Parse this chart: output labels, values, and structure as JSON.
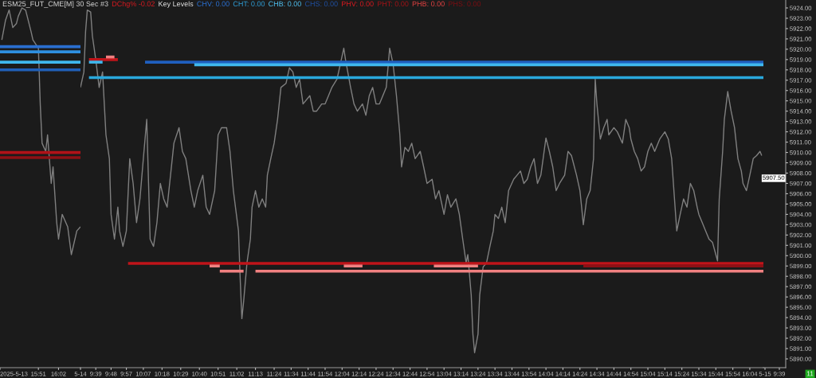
{
  "chart_data": [
    {
      "type": "line",
      "title": "ESM25_FUT_CME[M] 30 Sec #3",
      "annotations": [
        "DChg% -0.02",
        "Key Levels",
        "CHV: 0.00",
        "CHT: 0.00",
        "CHB: 0.00",
        "CHS: 0.00",
        "PHV: 0.00",
        "PHT: 0.00",
        "PHB: 0.00",
        "PHS: 0.00",
        "11"
      ],
      "xlim": [
        "2025-05-13T15:30",
        "2025-05-13T16:14"
      ],
      "xticks": [
        {
          "value": "2025-05-13T15:30",
          "label": "2025-5-13"
        },
        {
          "value": "2025-05-13T15:51",
          "label": "15:51"
        },
        {
          "value": "2025-05-13T16:02",
          "label": "16:02"
        }
      ],
      "ylim": [
        5889.15,
        5924.77
      ],
      "tick_labels": "x",
      "series": [
        {
          "color": "#808080",
          "x": [
            "2025-05-13T15:31",
            "2025-05-13T15:33",
            "2025-05-13T15:35",
            "2025-05-13T15:37",
            "2025-05-13T15:39",
            "2025-05-13T15:40",
            "2025-05-13T15:42",
            "2025-05-13T15:44",
            "2025-05-13T15:47",
            "2025-05-13T15:48",
            "2025-05-13T15:51",
            "2025-05-13T15:52",
            "2025-05-13T15:53",
            "2025-05-13T15:55",
            "2025-05-13T15:56",
            "2025-05-13T15:58",
            "2025-05-13T15:59",
            "2025-05-13T16:01",
            "2025-05-13T16:02",
            "2025-05-13T16:04",
            "2025-05-13T16:05",
            "2025-05-13T16:07",
            "2025-05-13T16:09",
            "2025-05-13T16:12",
            "2025-05-13T16:14"
          ],
          "values": [
            5920.9,
            5922.8,
            5923.8,
            5922.1,
            5922.5,
            5923.2,
            5924.0,
            5923.8,
            5921.7,
            5920.9,
            5920.1,
            5914.7,
            5910.9,
            5910.1,
            5911.7,
            5907.0,
            5908.6,
            5903.2,
            5901.6,
            5904.0,
            5903.6,
            5902.8,
            5900.1,
            5902.4,
            5902.8
          ]
        },
        {
          "color": "#2a6fd0",
          "x": [
            "2025-05-13T15:30",
            "2025-05-13T16:14"
          ],
          "values": [
            5920.25,
            5920.25
          ]
        },
        {
          "color": "#2e8fe0",
          "x": [
            "2025-05-13T15:30",
            "2025-05-13T16:14"
          ],
          "values": [
            5919.75,
            5919.75
          ]
        },
        {
          "color": "#3fb8ee",
          "x": [
            "2025-05-13T15:30",
            "2025-05-13T16:14"
          ],
          "values": [
            5918.75,
            5918.75
          ]
        },
        {
          "color": "#2060b8",
          "x": [
            "2025-05-13T15:30",
            "2025-05-13T16:14"
          ],
          "values": [
            5918.0,
            5918.0
          ]
        },
        {
          "color": "#b01218",
          "x": [
            "2025-05-13T15:30",
            "2025-05-13T16:14"
          ],
          "values": [
            5910.0,
            5910.0
          ]
        },
        {
          "color": "#8e1015",
          "x": [
            "2025-05-13T15:30",
            "2025-05-13T16:14"
          ],
          "values": [
            5909.5,
            5909.5
          ]
        }
      ]
    },
    {
      "type": "line",
      "xlim": [
        "2025-05-14T09:30",
        "2025-05-14T16:12"
      ],
      "xticks": [
        {
          "value": "2025-05-14T09:30",
          "label": "5-14"
        },
        {
          "value": "2025-05-14T09:39",
          "label": "9:39"
        },
        {
          "value": "2025-05-14T09:48",
          "label": "9:48"
        },
        {
          "value": "2025-05-14T09:57",
          "label": "9:57"
        },
        {
          "value": "2025-05-14T10:07",
          "label": "10:07"
        },
        {
          "value": "2025-05-14T10:18",
          "label": "10:18"
        },
        {
          "value": "2025-05-14T10:29",
          "label": "10:29"
        },
        {
          "value": "2025-05-14T10:40",
          "label": "10:40"
        },
        {
          "value": "2025-05-14T10:51",
          "label": "10:51"
        },
        {
          "value": "2025-05-14T11:02",
          "label": "11:02"
        },
        {
          "value": "2025-05-14T11:13",
          "label": "11:13"
        },
        {
          "value": "2025-05-14T11:24",
          "label": "11:24"
        },
        {
          "value": "2025-05-14T11:34",
          "label": "11:34"
        },
        {
          "value": "2025-05-14T11:44",
          "label": "11:44"
        },
        {
          "value": "2025-05-14T11:54",
          "label": "11:54"
        },
        {
          "value": "2025-05-14T12:04",
          "label": "12:04"
        },
        {
          "value": "2025-05-14T12:14",
          "label": "12:14"
        },
        {
          "value": "2025-05-14T12:24",
          "label": "12:24"
        },
        {
          "value": "2025-05-14T12:34",
          "label": "12:34"
        },
        {
          "value": "2025-05-14T12:44",
          "label": "12:44"
        },
        {
          "value": "2025-05-14T12:54",
          "label": "12:54"
        },
        {
          "value": "2025-05-14T13:04",
          "label": "13:04"
        },
        {
          "value": "2025-05-14T13:14",
          "label": "13:14"
        },
        {
          "value": "2025-05-14T13:24",
          "label": "13:24"
        },
        {
          "value": "2025-05-14T13:34",
          "label": "13:34"
        },
        {
          "value": "2025-05-14T13:44",
          "label": "13:44"
        },
        {
          "value": "2025-05-14T13:54",
          "label": "13:54"
        },
        {
          "value": "2025-05-14T14:04",
          "label": "14:04"
        },
        {
          "value": "2025-05-14T14:14",
          "label": "14:14"
        },
        {
          "value": "2025-05-14T14:24",
          "label": "14:24"
        },
        {
          "value": "2025-05-14T14:34",
          "label": "14:34"
        },
        {
          "value": "2025-05-14T14:44",
          "label": "14:44"
        },
        {
          "value": "2025-05-14T14:54",
          "label": "14:54"
        },
        {
          "value": "2025-05-14T15:04",
          "label": "15:04"
        },
        {
          "value": "2025-05-14T15:14",
          "label": "15:14"
        },
        {
          "value": "2025-05-14T15:24",
          "label": "15:24"
        },
        {
          "value": "2025-05-14T15:34",
          "label": "15:34"
        },
        {
          "value": "2025-05-14T15:44",
          "label": "15:44"
        },
        {
          "value": "2025-05-14T15:54",
          "label": "15:54"
        },
        {
          "value": "2025-05-14T16:04",
          "label": "16:04"
        }
      ],
      "ylim": [
        5889.15,
        5924.77
      ],
      "tick_labels": "x",
      "series": [
        {
          "color": "#808080",
          "x": [
            "2025-05-14T09:30",
            "2025-05-14T09:32",
            "2025-05-14T09:33",
            "2025-05-14T09:34",
            "2025-05-14T09:36",
            "2025-05-14T09:37",
            "2025-05-14T09:39",
            "2025-05-14T09:41",
            "2025-05-14T09:43",
            "2025-05-14T09:45",
            "2025-05-14T09:47",
            "2025-05-14T09:48",
            "2025-05-14T09:50",
            "2025-05-14T09:52",
            "2025-05-14T09:53",
            "2025-05-14T09:55",
            "2025-05-14T09:57",
            "2025-05-14T09:59",
            "2025-05-14T10:01",
            "2025-05-14T10:03",
            "2025-05-14T10:05",
            "2025-05-14T10:07",
            "2025-05-14T10:09",
            "2025-05-14T10:11",
            "2025-05-14T10:13",
            "2025-05-14T10:15",
            "2025-05-14T10:17",
            "2025-05-14T10:19",
            "2025-05-14T10:21",
            "2025-05-14T10:23",
            "2025-05-14T10:25",
            "2025-05-14T10:28",
            "2025-05-14T10:30",
            "2025-05-14T10:32",
            "2025-05-14T10:35",
            "2025-05-14T10:37",
            "2025-05-14T10:39",
            "2025-05-14T10:42",
            "2025-05-14T10:44",
            "2025-05-14T10:46",
            "2025-05-14T10:49",
            "2025-05-14T10:51",
            "2025-05-14T10:53",
            "2025-05-14T10:56",
            "2025-05-14T10:58",
            "2025-05-14T11:00",
            "2025-05-14T11:03",
            "2025-05-14T11:04",
            "2025-05-14T11:05",
            "2025-05-14T11:06",
            "2025-05-14T11:08",
            "2025-05-14T11:10",
            "2025-05-14T11:11",
            "2025-05-14T11:13",
            "2025-05-14T11:15",
            "2025-05-14T11:17",
            "2025-05-14T11:19",
            "2025-05-14T11:20",
            "2025-05-14T11:22",
            "2025-05-14T11:24",
            "2025-05-14T11:26",
            "2025-05-14T11:28",
            "2025-05-14T11:31",
            "2025-05-14T11:33",
            "2025-05-14T11:35",
            "2025-05-14T11:37",
            "2025-05-14T11:39",
            "2025-05-14T11:41",
            "2025-05-14T11:45",
            "2025-05-14T11:47",
            "2025-05-14T11:49",
            "2025-05-14T11:52",
            "2025-05-14T11:54",
            "2025-05-14T11:56",
            "2025-05-14T11:58",
            "2025-05-14T12:01",
            "2025-05-14T12:03",
            "2025-05-14T12:05",
            "2025-05-14T12:06",
            "2025-05-14T12:09",
            "2025-05-14T12:11",
            "2025-05-14T12:13",
            "2025-05-14T12:16",
            "2025-05-14T12:18",
            "2025-05-14T12:20",
            "2025-05-14T12:22",
            "2025-05-14T12:24",
            "2025-05-14T12:26",
            "2025-05-14T12:30",
            "2025-05-14T12:32",
            "2025-05-14T12:34",
            "2025-05-14T12:36",
            "2025-05-14T12:38",
            "2025-05-14T12:39",
            "2025-05-14T12:41",
            "2025-05-14T12:43",
            "2025-05-14T12:45",
            "2025-05-14T12:47",
            "2025-05-14T12:50",
            "2025-05-14T12:52",
            "2025-05-14T12:54",
            "2025-05-14T12:57",
            "2025-05-14T12:59",
            "2025-05-14T13:01",
            "2025-05-14T13:04",
            "2025-05-14T13:06",
            "2025-05-14T13:08",
            "2025-05-14T13:11",
            "2025-05-14T13:13",
            "2025-05-14T13:15",
            "2025-05-14T13:17",
            "2025-05-14T13:18",
            "2025-05-14T13:20",
            "2025-05-14T13:21",
            "2025-05-14T13:22",
            "2025-05-14T13:24",
            "2025-05-14T13:25",
            "2025-05-14T13:27",
            "2025-05-14T13:29",
            "2025-05-14T13:31",
            "2025-05-14T13:33",
            "2025-05-14T13:34",
            "2025-05-14T13:36",
            "2025-05-14T13:38",
            "2025-05-14T13:40",
            "2025-05-14T13:42",
            "2025-05-14T13:45",
            "2025-05-14T13:47",
            "2025-05-14T13:49",
            "2025-05-14T13:51",
            "2025-05-14T13:53",
            "2025-05-14T13:55",
            "2025-05-14T13:57",
            "2025-05-14T13:59",
            "2025-05-14T14:01",
            "2025-05-14T14:04",
            "2025-05-14T14:06",
            "2025-05-14T14:08",
            "2025-05-14T14:10",
            "2025-05-14T14:12",
            "2025-05-14T14:15",
            "2025-05-14T14:17",
            "2025-05-14T14:19",
            "2025-05-14T14:22",
            "2025-05-14T14:24",
            "2025-05-14T14:25",
            "2025-05-14T14:26",
            "2025-05-14T14:28",
            "2025-05-14T14:30",
            "2025-05-14T14:32",
            "2025-05-14T14:33",
            "2025-05-14T14:34",
            "2025-05-14T14:36",
            "2025-05-14T14:38",
            "2025-05-14T14:40",
            "2025-05-14T14:41",
            "2025-05-14T14:44",
            "2025-05-14T14:46",
            "2025-05-14T14:49",
            "2025-05-14T14:51",
            "2025-05-14T14:53",
            "2025-05-14T14:54",
            "2025-05-14T14:56",
            "2025-05-14T14:58",
            "2025-05-14T15:00",
            "2025-05-14T15:02",
            "2025-05-14T15:04",
            "2025-05-14T15:06",
            "2025-05-14T15:08",
            "2025-05-14T15:11",
            "2025-05-14T15:14",
            "2025-05-14T15:16",
            "2025-05-14T15:18",
            "2025-05-14T15:20",
            "2025-05-14T15:21",
            "2025-05-14T15:23",
            "2025-05-14T15:25",
            "2025-05-14T15:27",
            "2025-05-14T15:29",
            "2025-05-14T15:31",
            "2025-05-14T15:33",
            "2025-05-14T15:34",
            "2025-05-14T15:36",
            "2025-05-14T15:38",
            "2025-05-14T15:40",
            "2025-05-14T15:42",
            "2025-05-14T15:44",
            "2025-05-14T15:45",
            "2025-05-14T15:46",
            "2025-05-14T15:48",
            "2025-05-14T15:49",
            "2025-05-14T15:51",
            "2025-05-14T15:53",
            "2025-05-14T15:55",
            "2025-05-14T15:57",
            "2025-05-14T15:59",
            "2025-05-14T16:00",
            "2025-05-14T16:02",
            "2025-05-14T16:04",
            "2025-05-14T16:06",
            "2025-05-14T16:08",
            "2025-05-14T16:10",
            "2025-05-14T16:11"
          ],
          "values": [
            5916.3,
            5917.8,
            5921.7,
            5923.8,
            5923.6,
            5921.3,
            5919.0,
            5916.3,
            5917.8,
            5911.7,
            5909.4,
            5904.0,
            5901.6,
            5904.7,
            5902.4,
            5900.9,
            5902.4,
            5909.4,
            5907.0,
            5903.2,
            5905.5,
            5909.4,
            5913.2,
            5901.6,
            5900.9,
            5903.2,
            5907.0,
            5905.5,
            5904.7,
            5907.8,
            5910.9,
            5912.4,
            5910.1,
            5909.4,
            5906.3,
            5904.7,
            5906.3,
            5907.8,
            5904.7,
            5904.0,
            5906.3,
            5911.7,
            5912.4,
            5912.4,
            5910.1,
            5906.3,
            5902.4,
            5897.8,
            5893.9,
            5895.5,
            5899.3,
            5901.6,
            5904.7,
            5906.3,
            5904.7,
            5905.5,
            5904.7,
            5907.8,
            5909.4,
            5910.9,
            5913.2,
            5916.3,
            5916.7,
            5918.2,
            5917.8,
            5916.3,
            5917.1,
            5914.7,
            5915.5,
            5914.0,
            5914.0,
            5914.7,
            5914.7,
            5915.5,
            5916.3,
            5917.1,
            5918.6,
            5920.1,
            5919.0,
            5916.3,
            5914.7,
            5914.0,
            5914.7,
            5913.6,
            5915.5,
            5916.3,
            5914.7,
            5914.7,
            5916.3,
            5920.1,
            5918.6,
            5915.5,
            5911.7,
            5908.6,
            5910.5,
            5910.1,
            5910.9,
            5909.4,
            5910.1,
            5908.6,
            5907.0,
            5907.4,
            5905.5,
            5906.3,
            5904.0,
            5905.9,
            5904.7,
            5905.5,
            5904.0,
            5901.6,
            5899.3,
            5900.1,
            5896.2,
            5892.4,
            5890.6,
            5892.4,
            5896.2,
            5898.9,
            5899.3,
            5900.9,
            5902.4,
            5904.0,
            5903.6,
            5904.7,
            5903.2,
            5906.3,
            5907.4,
            5907.8,
            5908.2,
            5907.0,
            5907.4,
            5908.6,
            5909.4,
            5907.0,
            5907.8,
            5911.4,
            5910.1,
            5908.6,
            5906.3,
            5907.0,
            5907.8,
            5910.1,
            5909.7,
            5907.8,
            5906.3,
            5904.7,
            5903.0,
            5905.5,
            5906.3,
            5909.4,
            5917.1,
            5914.7,
            5911.3,
            5912.4,
            5913.2,
            5911.7,
            5912.4,
            5912.0,
            5910.9,
            5913.2,
            5912.4,
            5911.3,
            5910.1,
            5909.4,
            5908.2,
            5908.6,
            5910.1,
            5910.9,
            5910.1,
            5911.3,
            5912.0,
            5911.3,
            5909.4,
            5904.7,
            5902.4,
            5904.0,
            5905.5,
            5904.7,
            5907.0,
            5906.3,
            5904.7,
            5904.0,
            5903.2,
            5902.4,
            5901.6,
            5901.3,
            5900.1,
            5899.5,
            5905.5,
            5910.1,
            5913.2,
            5915.9,
            5914.0,
            5912.4,
            5909.4,
            5908.2,
            5907.0,
            5906.3,
            5907.8,
            5909.4,
            5909.7,
            5910.1,
            5909.7
          ]
        },
        {
          "color": "#c0141a",
          "x": [
            "2025-05-14T09:35",
            "2025-05-14T09:52"
          ],
          "values": [
            5919.0,
            5919.0
          ]
        },
        {
          "color": "#f08080",
          "x": [
            "2025-05-14T09:45",
            "2025-05-14T09:50"
          ],
          "values": [
            5919.25,
            5919.25
          ]
        },
        {
          "color": "#3fb8ee",
          "x": [
            "2025-05-14T09:35",
            "2025-05-14T09:43"
          ],
          "values": [
            5918.75,
            5918.75
          ]
        },
        {
          "color": "#29a8dc",
          "x": [
            "2025-05-14T09:35",
            "2025-05-14T16:12"
          ],
          "values": [
            5917.25,
            5917.25
          ]
        },
        {
          "color": "#1f5fbf",
          "x": [
            "2025-05-14T10:08",
            "2025-05-14T16:12"
          ],
          "values": [
            5918.75,
            5918.75
          ]
        },
        {
          "color": "#3fb8ee",
          "x": [
            "2025-05-14T10:37",
            "2025-05-14T16:12"
          ],
          "values": [
            5918.5,
            5918.5
          ]
        },
        {
          "color": "#c0141a",
          "x": [
            "2025-05-14T09:58",
            "2025-05-14T16:12"
          ],
          "values": [
            5899.25,
            5899.25
          ]
        },
        {
          "color": "#f08080",
          "x": [
            "2025-05-14T10:52",
            "2025-05-14T11:06"
          ],
          "values": [
            5898.5,
            5898.5
          ]
        },
        {
          "color": "#f08080",
          "x": [
            "2025-05-14T11:13",
            "2025-05-14T16:12"
          ],
          "values": [
            5898.5,
            5898.5
          ]
        },
        {
          "color": "#f08080",
          "x": [
            "2025-05-14T10:46",
            "2025-05-14T10:52"
          ],
          "values": [
            5899.0,
            5899.0
          ]
        },
        {
          "color": "#f08080",
          "x": [
            "2025-05-14T12:05",
            "2025-05-14T12:16"
          ],
          "values": [
            5899.0,
            5899.0
          ]
        },
        {
          "color": "#f08080",
          "x": [
            "2025-05-14T12:58",
            "2025-05-14T13:24"
          ],
          "values": [
            5899.0,
            5899.0
          ]
        },
        {
          "color": "#8e1015",
          "x": [
            "2025-05-14T14:26",
            "2025-05-14T16:12"
          ],
          "values": [
            5899.0,
            5899.0
          ]
        }
      ]
    },
    {
      "type": "line",
      "xlim": [
        "2025-05-15T09:29",
        "2025-05-15T09:43"
      ],
      "xticks": [
        {
          "value": "2025-05-15T09:30",
          "label": "5-15"
        },
        {
          "value": "2025-05-15T09:39",
          "label": "9:39"
        }
      ],
      "ylim": [
        5889.15,
        5924.77
      ],
      "yticks": [
        {
          "value": 5890,
          "label": "5890.00"
        },
        {
          "value": 5891,
          "label": "5891.00"
        },
        {
          "value": 5892,
          "label": "5892.00"
        },
        {
          "value": 5893,
          "label": "5893.00"
        },
        {
          "value": 5894,
          "label": "5894.00"
        },
        {
          "value": 5895,
          "label": "5895.00"
        },
        {
          "value": 5896,
          "label": "5896.00"
        },
        {
          "value": 5897,
          "label": "5897.00"
        },
        {
          "value": 5898,
          "label": "5898.00"
        },
        {
          "value": 5899,
          "label": "5899.00"
        },
        {
          "value": 5900,
          "label": "5900.00"
        },
        {
          "value": 5901,
          "label": "5901.00"
        },
        {
          "value": 5902,
          "label": "5902.00"
        },
        {
          "value": 5903,
          "label": "5903.00"
        },
        {
          "value": 5904,
          "label": "5904.00"
        },
        {
          "value": 5905,
          "label": "5905.00"
        },
        {
          "value": 5906,
          "label": "5906.00"
        },
        {
          "value": 5907,
          "label": "5907.00"
        },
        {
          "value": 5908,
          "label": "5908.00"
        },
        {
          "value": 5909,
          "label": "5909.00"
        },
        {
          "value": 5910,
          "label": "5910.00"
        },
        {
          "value": 5911,
          "label": "5911.00"
        },
        {
          "value": 5912,
          "label": "5912.00"
        },
        {
          "value": 5913,
          "label": "5913.00"
        },
        {
          "value": 5914,
          "label": "5914.00"
        },
        {
          "value": 5915,
          "label": "5915.00"
        },
        {
          "value": 5916,
          "label": "5916.00"
        },
        {
          "value": 5917,
          "label": "5917.00"
        },
        {
          "value": 5918,
          "label": "5918.00"
        },
        {
          "value": 5919,
          "label": "5919.00"
        },
        {
          "value": 5920,
          "label": "5920.00"
        },
        {
          "value": 5921,
          "label": "5921.00"
        },
        {
          "value": 5922,
          "label": "5922.00"
        },
        {
          "value": 5923,
          "label": "5923.00"
        },
        {
          "value": 5924,
          "label": "5924.00"
        }
      ],
      "ref_lines": [
        {
          "axis": "y",
          "value": 5907.5,
          "label": "5907.50",
          "color": "#ffffff"
        }
      ]
    }
  ]
}
